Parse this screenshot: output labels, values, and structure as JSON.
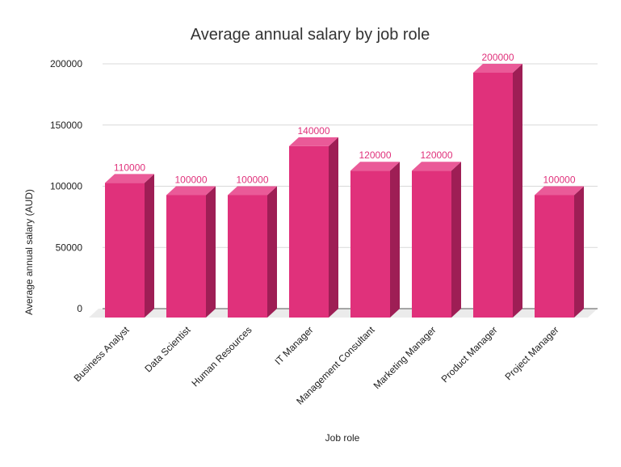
{
  "chart_data": {
    "type": "bar",
    "title": "Average annual salary by job role",
    "xlabel": "Job role",
    "ylabel": "Average annual salary (AUD)",
    "categories": [
      "Business Analyst",
      "Data Scientist",
      "Human Resources",
      "IT Manager",
      "Management Consultant",
      "Marketing Manager",
      "Product Manager",
      "Project Manager"
    ],
    "values": [
      110000,
      100000,
      100000,
      140000,
      120000,
      120000,
      200000,
      100000
    ],
    "data_labels": [
      "110000",
      "100000",
      "100000",
      "140000",
      "120000",
      "120000",
      "200000",
      "100000"
    ],
    "yticks": [
      "0",
      "50000",
      "100000",
      "150000",
      "200000"
    ],
    "ylim": [
      0,
      200000
    ],
    "grid": true,
    "legend": "none",
    "style": "3d"
  },
  "colors": {
    "bar_front": "#e0317b",
    "bar_top": "#ea5a98",
    "bar_side": "#9e1e55",
    "floor": "#ebebeb",
    "label": "#e0317b"
  }
}
